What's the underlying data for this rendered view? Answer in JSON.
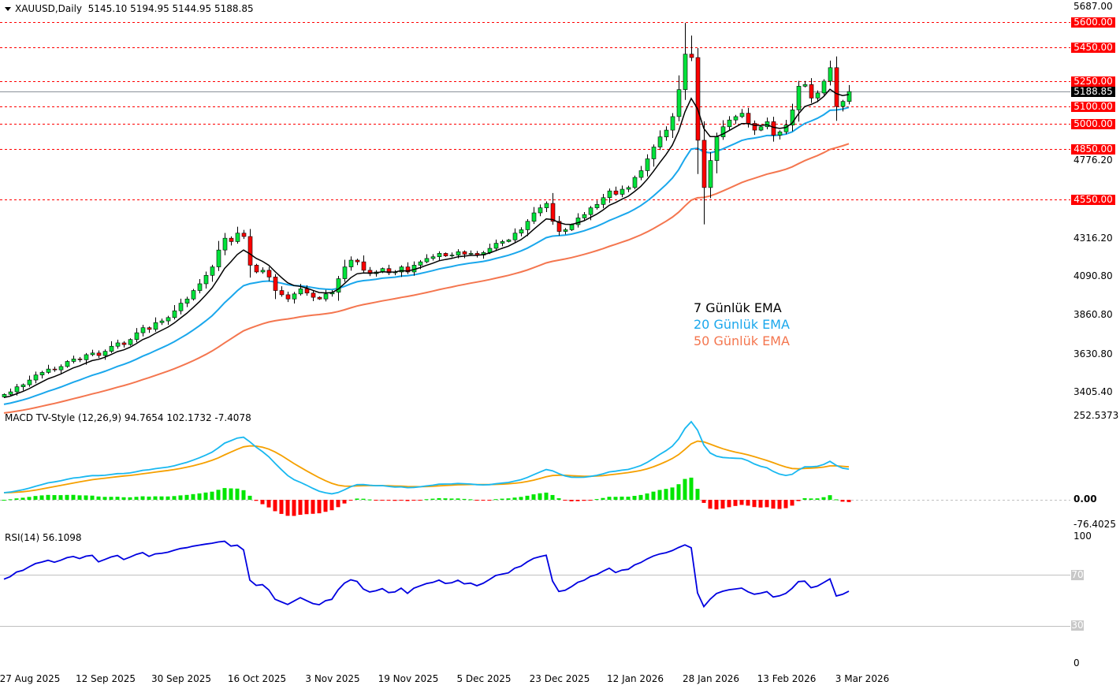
{
  "header": {
    "symbol": "XAUUSD,Daily",
    "ohlc": "5145.10 5194.95 5144.95 5188.85"
  },
  "legend": [
    {
      "label": "7 Günlük EMA",
      "color": "#000000"
    },
    {
      "label": "20 Günlük EMA",
      "color": "#1aa7ec"
    },
    {
      "label": "50 Günlük EMA",
      "color": "#f4764f"
    }
  ],
  "macd": {
    "label": "MACD TV-Style (12,26,9) 94.7654 102.1732 -7.4078",
    "axis": [
      "252.5373",
      "0.00",
      "-76.4025"
    ]
  },
  "rsi": {
    "label": "RSI(14) 56.1098",
    "axis": [
      "100",
      "70",
      "30",
      "0"
    ]
  },
  "price_axis": [
    "5687.00",
    "4776.20",
    "4316.20",
    "4090.80",
    "3860.80",
    "3630.80",
    "3405.40"
  ],
  "levels": [
    {
      "value": 5600,
      "label": "5600.00"
    },
    {
      "value": 5450,
      "label": "5450.00"
    },
    {
      "value": 5250,
      "label": "5250.00"
    },
    {
      "value": 5100,
      "label": "5100.00"
    },
    {
      "value": 5000,
      "label": "5000.00"
    },
    {
      "value": 4850,
      "label": "4850.00"
    },
    {
      "value": 4550,
      "label": "4550.00"
    }
  ],
  "current_price": {
    "value": 5188.85,
    "label": "5188.85"
  },
  "dates": [
    "27 Aug 2025",
    "12 Sep 2025",
    "30 Sep 2025",
    "16 Oct 2025",
    "3 Nov 2025",
    "19 Nov 2025",
    "5 Dec 2025",
    "23 Dec 2025",
    "12 Jan 2026",
    "28 Jan 2026",
    "13 Feb 2026",
    "3 Mar 2026"
  ],
  "chart_data": {
    "type": "candlestick",
    "title": "XAUUSD Daily",
    "ylim": [
      3405.4,
      5687.0
    ],
    "first_open": 3380,
    "close": [
      3395,
      3410,
      3440,
      3452,
      3480,
      3510,
      3525,
      3545,
      3540,
      3560,
      3590,
      3605,
      3600,
      3630,
      3640,
      3625,
      3650,
      3680,
      3700,
      3690,
      3720,
      3760,
      3790,
      3780,
      3820,
      3830,
      3850,
      3890,
      3935,
      3960,
      4010,
      4050,
      4100,
      4150,
      4250,
      4320,
      4300,
      4350,
      4330,
      4160,
      4120,
      4130,
      4090,
      4010,
      3985,
      3960,
      3990,
      4020,
      3995,
      3970,
      3960,
      3990,
      4000,
      4080,
      4150,
      4190,
      4180,
      4130,
      4110,
      4120,
      4140,
      4115,
      4120,
      4150,
      4120,
      4160,
      4180,
      4200,
      4210,
      4230,
      4215,
      4220,
      4240,
      4225,
      4230,
      4220,
      4235,
      4260,
      4290,
      4300,
      4310,
      4350,
      4370,
      4420,
      4470,
      4500,
      4526,
      4420,
      4360,
      4370,
      4400,
      4440,
      4460,
      4500,
      4520,
      4560,
      4600,
      4580,
      4610,
      4620,
      4680,
      4720,
      4790,
      4860,
      4920,
      4960,
      5040,
      5200,
      5410,
      5390,
      4900,
      4620,
      4780,
      4920,
      4980,
      5020,
      5040,
      5060,
      5000,
      4960,
      4980,
      5010,
      4930,
      4950,
      4990,
      5080,
      5220,
      5230,
      5150,
      5180,
      5250,
      5330,
      5100,
      5130,
      5188.85
    ],
    "high_overrides": {
      "108": 5595,
      "109": 5520
    },
    "low_overrides": {
      "111": 4402,
      "110": 4700
    },
    "ema_periods": [
      7,
      20,
      50
    ],
    "macd_params": [
      12,
      26,
      9
    ],
    "macd_last": {
      "macd": 94.7654,
      "signal": 102.1732,
      "hist": -7.4078
    },
    "rsi_period": 14,
    "rsi_last": 56.1098,
    "rsi_levels": [
      70,
      30
    ]
  }
}
